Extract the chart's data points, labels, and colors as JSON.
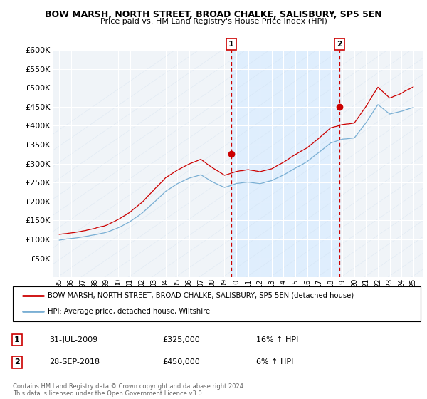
{
  "title": "BOW MARSH, NORTH STREET, BROAD CHALKE, SALISBURY, SP5 5EN",
  "subtitle": "Price paid vs. HM Land Registry's House Price Index (HPI)",
  "legend_line1": "BOW MARSH, NORTH STREET, BROAD CHALKE, SALISBURY, SP5 5EN (detached house)",
  "legend_line2": "HPI: Average price, detached house, Wiltshire",
  "footnote": "Contains HM Land Registry data © Crown copyright and database right 2024.\nThis data is licensed under the Open Government Licence v3.0.",
  "event1_label": "1",
  "event1_date": "31-JUL-2009",
  "event1_price": "£325,000",
  "event1_hpi": "16% ↑ HPI",
  "event2_label": "2",
  "event2_date": "28-SEP-2018",
  "event2_price": "£450,000",
  "event2_hpi": "6% ↑ HPI",
  "red_color": "#cc0000",
  "blue_color": "#7aafd4",
  "shade_color": "#ddeeff",
  "ylim": [
    0,
    600000
  ],
  "yticks": [
    0,
    50000,
    100000,
    150000,
    200000,
    250000,
    300000,
    350000,
    400000,
    450000,
    500000,
    550000,
    600000
  ],
  "event1_x": 2009.58,
  "event2_x": 2018.75,
  "event1_y": 325000,
  "event2_y": 450000,
  "bg_color": "#f0f4f8",
  "grid_color": "#ffffff",
  "xlim_left": 1994.5,
  "xlim_right": 2025.8
}
